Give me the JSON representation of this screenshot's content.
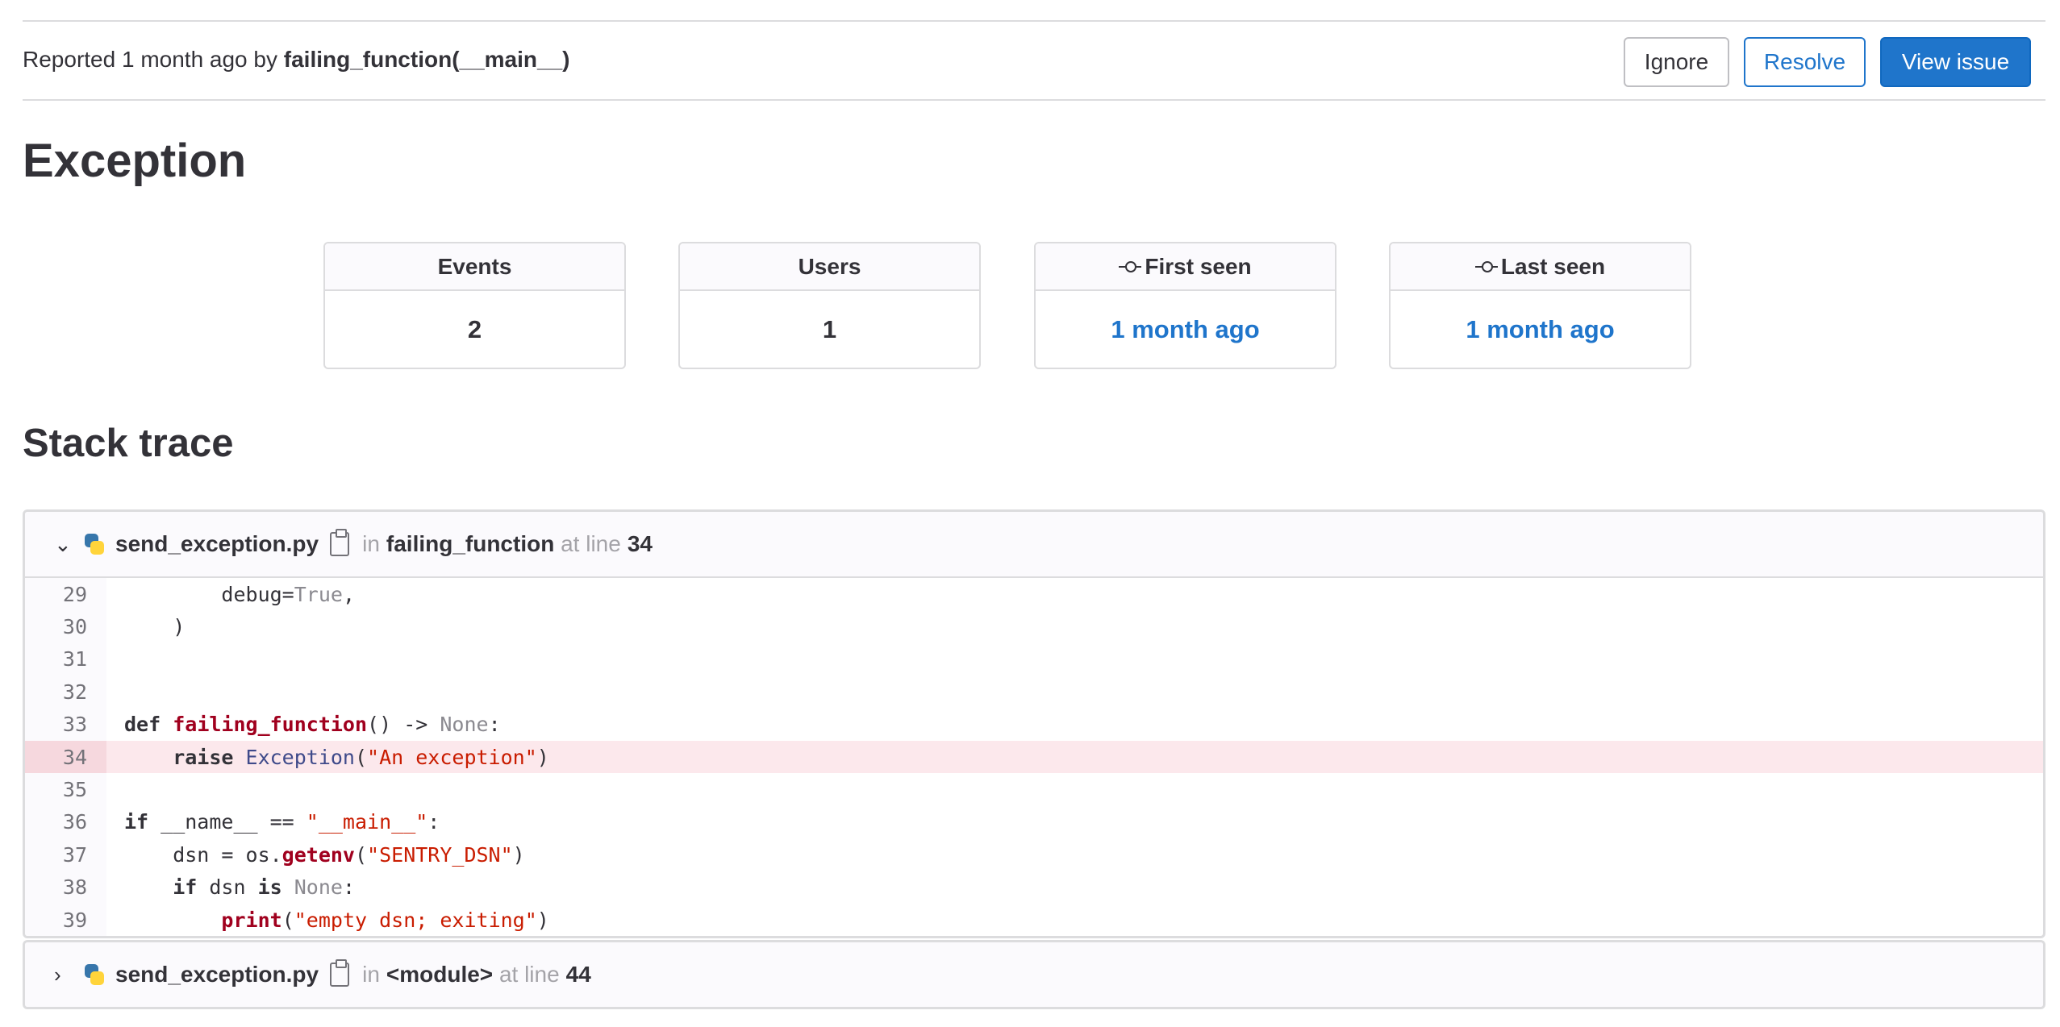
{
  "header": {
    "reported_prefix": "Reported 1 month ago by",
    "reporter": "failing_function(__main__)",
    "buttons": {
      "ignore": "Ignore",
      "resolve": "Resolve",
      "view": "View issue"
    }
  },
  "title": "Exception",
  "stats": [
    {
      "label": "Events",
      "value": "2"
    },
    {
      "label": "Users",
      "value": "1"
    },
    {
      "label": "First seen",
      "value": "1 month ago",
      "icon": "commit-icon"
    },
    {
      "label": "Last seen",
      "value": "1 month ago",
      "icon": "commit-icon"
    }
  ],
  "stack_title": "Stack trace",
  "frames": [
    {
      "file": "send_exception.py",
      "in": "in",
      "func": "failing_function",
      "at": "at line",
      "line": "34",
      "expanded": true
    },
    {
      "file": "send_exception.py",
      "in": "in",
      "func": "<module>",
      "at": "at line",
      "line": "44",
      "expanded": false
    }
  ],
  "code": {
    "highlight": 34,
    "lines": [
      {
        "n": "29",
        "t": [
          [
            "",
            "        debug="
          ],
          [
            "nil",
            "True"
          ],
          [
            "",
            ","
          ]
        ]
      },
      {
        "n": "30",
        "t": [
          [
            "",
            "    )"
          ]
        ]
      },
      {
        "n": "31",
        "t": []
      },
      {
        "n": "32",
        "t": []
      },
      {
        "n": "33",
        "t": [
          [
            "kw",
            "def "
          ],
          [
            "fn",
            "failing_function"
          ],
          [
            "",
            "() -> "
          ],
          [
            "nil",
            "None"
          ],
          [
            "",
            ":"
          ]
        ]
      },
      {
        "n": "34",
        "t": [
          [
            "kw",
            "    raise "
          ],
          [
            "cls",
            "Exception"
          ],
          [
            "",
            "("
          ],
          [
            "str",
            "\"An exception\""
          ],
          [
            "",
            ")"
          ]
        ]
      },
      {
        "n": "35",
        "t": []
      },
      {
        "n": "36",
        "t": [
          [
            "kw",
            "if "
          ],
          [
            "",
            "__name__ == "
          ],
          [
            "str",
            "\"__main__\""
          ],
          [
            "",
            ":"
          ]
        ]
      },
      {
        "n": "37",
        "t": [
          [
            "",
            "    dsn = os."
          ],
          [
            "fn",
            "getenv"
          ],
          [
            "",
            "("
          ],
          [
            "str",
            "\"SENTRY_DSN\""
          ],
          [
            "",
            ")"
          ]
        ]
      },
      {
        "n": "38",
        "t": [
          [
            "kw",
            "    if "
          ],
          [
            "",
            "dsn "
          ],
          [
            "kw",
            "is "
          ],
          [
            "nil",
            "None"
          ],
          [
            "",
            ":"
          ]
        ]
      },
      {
        "n": "39",
        "t": [
          [
            "",
            "        "
          ],
          [
            "fn",
            "print"
          ],
          [
            "",
            "("
          ],
          [
            "str",
            "\"empty dsn; exiting\""
          ],
          [
            "",
            ")"
          ]
        ]
      }
    ]
  },
  "colors": {
    "accent": "#1f75cb",
    "highlight": "#fce8ec"
  }
}
